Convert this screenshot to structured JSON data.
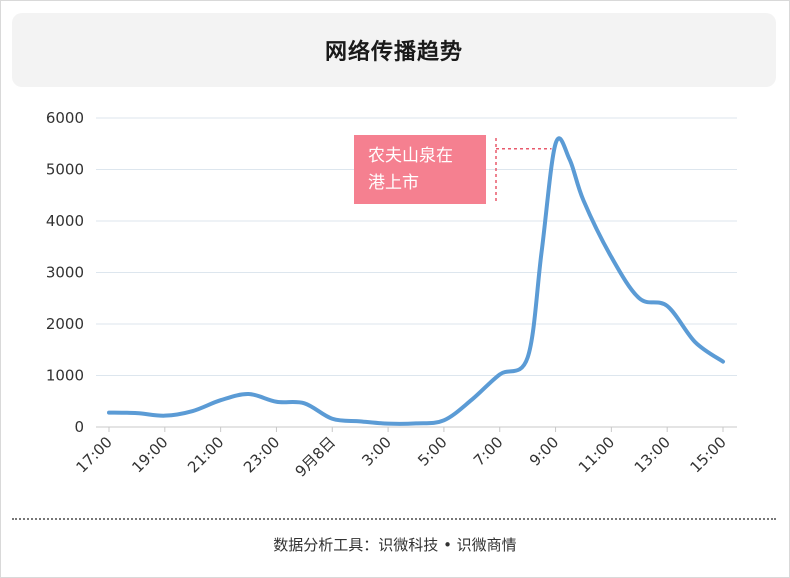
{
  "title": "网络传播趋势",
  "footer": "数据分析工具：识微科技 • 识微商情",
  "colors": {
    "line": "#5b9bd5",
    "grid": "#dde6ee",
    "annotation_bg": "#f58090",
    "axis_text": "#333333"
  },
  "chart_data": {
    "type": "line",
    "title": "网络传播趋势",
    "xlabel": "",
    "ylabel": "",
    "ylim": [
      0,
      6000
    ],
    "yticks": [
      "0",
      "1000",
      "2000",
      "3000",
      "4000",
      "5000",
      "6000"
    ],
    "xticks": [
      "17:00",
      "19:00",
      "21:00",
      "23:00",
      "9月8日",
      "3:00",
      "5:00",
      "7:00",
      "9:00",
      "11:00",
      "13:00",
      "15:00"
    ],
    "grid": true,
    "x": [
      "17:00",
      "18:00",
      "19:00",
      "20:00",
      "21:00",
      "22:00",
      "23:00",
      "0:00",
      "1:00",
      "2:00",
      "3:00",
      "4:00",
      "5:00",
      "6:00",
      "7:00",
      "8:00",
      "8:30",
      "9:00",
      "9:30",
      "10:00",
      "11:00",
      "12:00",
      "13:00",
      "14:00",
      "15:00"
    ],
    "values": [
      280,
      270,
      220,
      310,
      520,
      640,
      490,
      460,
      160,
      110,
      65,
      70,
      130,
      530,
      1020,
      1350,
      3400,
      5500,
      5200,
      4400,
      3300,
      2500,
      2350,
      1650,
      1270
    ],
    "annotations": [
      {
        "text": [
          "农夫山泉在",
          "港上市"
        ],
        "x": "9:00",
        "y": 5500
      }
    ]
  }
}
